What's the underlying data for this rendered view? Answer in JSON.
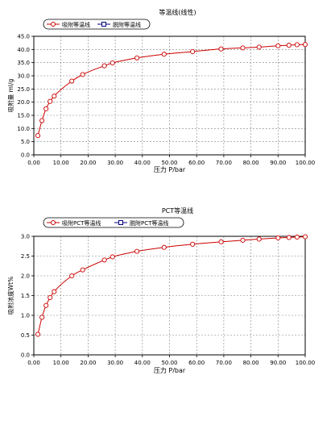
{
  "colors": {
    "adsorption": "#cc0000",
    "desorption": "#000080",
    "grid": "#808080",
    "frame": "#000000"
  },
  "chart_data": [
    {
      "type": "line",
      "title": "等温线(线性)",
      "xlabel": "压力 P/bar",
      "ylabel": "吸附量 ml/g",
      "xlim": [
        0,
        100
      ],
      "ylim": [
        0,
        45
      ],
      "x_ticks": [
        "0.00",
        "10.00",
        "20.00",
        "30.00",
        "40.00",
        "50.00",
        "60.00",
        "70.00",
        "80.00",
        "90.00",
        "100.00"
      ],
      "y_ticks": [
        "0.0",
        "5.0",
        "10.0",
        "15.0",
        "20.0",
        "25.0",
        "30.0",
        "35.0",
        "40.0",
        "45.0"
      ],
      "grid": true,
      "legend_position": "top-left",
      "legend": [
        "吸附等温线",
        "脱附等温线"
      ],
      "series": [
        {
          "name": "吸附等温线",
          "marker": "circle",
          "x": [
            1.5,
            3.0,
            4.5,
            6.0,
            7.5,
            14.0,
            18.0,
            26.0,
            29.0,
            38.0,
            48.0,
            58.5,
            69.0,
            77.0,
            83.0,
            90.0,
            94.0,
            97.0,
            100.0
          ],
          "y": [
            7.3,
            13.0,
            17.5,
            20.3,
            22.3,
            28.0,
            30.5,
            33.8,
            34.9,
            36.8,
            38.2,
            39.2,
            40.2,
            40.6,
            40.9,
            41.4,
            41.6,
            41.8,
            41.9
          ]
        },
        {
          "name": "脱附等温线",
          "marker": "square",
          "x": [],
          "y": []
        }
      ]
    },
    {
      "type": "line",
      "title": "PCT等温线",
      "xlabel": "压力 P/bar",
      "ylabel": "吸附浓度Wt%",
      "xlim": [
        0,
        100
      ],
      "ylim": [
        0,
        3.0
      ],
      "x_ticks": [
        "0.00",
        "10.00",
        "20.00",
        "30.00",
        "40.00",
        "50.00",
        "60.00",
        "70.00",
        "80.00",
        "90.00",
        "100.00"
      ],
      "y_ticks": [
        "0.0",
        "0.5",
        "1.0",
        "1.5",
        "2.0",
        "2.5",
        "3.0"
      ],
      "grid": true,
      "legend_position": "top-left",
      "legend": [
        "吸附PCT等温线",
        "脱附PCT等温线"
      ],
      "series": [
        {
          "name": "吸附PCT等温线",
          "marker": "circle",
          "x": [
            1.5,
            3.0,
            4.5,
            6.0,
            7.5,
            14.0,
            18.0,
            26.0,
            29.0,
            38.0,
            48.0,
            58.5,
            69.0,
            77.0,
            83.0,
            90.0,
            94.0,
            97.0,
            100.0
          ],
          "y": [
            0.52,
            0.95,
            1.25,
            1.45,
            1.6,
            2.0,
            2.15,
            2.4,
            2.48,
            2.62,
            2.72,
            2.8,
            2.86,
            2.9,
            2.93,
            2.96,
            2.97,
            2.98,
            2.99
          ]
        },
        {
          "name": "脱附PCT等温线",
          "marker": "square",
          "x": [],
          "y": []
        }
      ]
    }
  ]
}
